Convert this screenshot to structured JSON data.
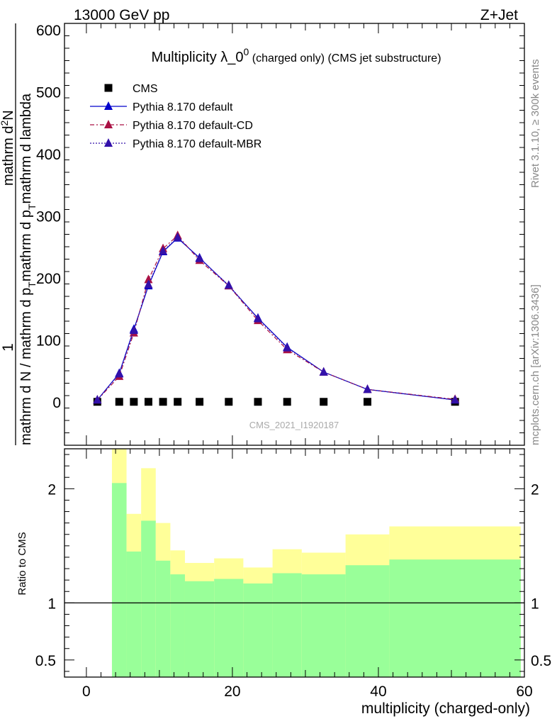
{
  "header": {
    "left": "13000 GeV pp",
    "right": "Z+Jet"
  },
  "side_labels": {
    "rivet": "Rivet 3.1.10, ≥ 300k events",
    "mcplots": "mcplots.cern.ch [arXiv:1306.3436]"
  },
  "watermark": "CMS_2021_I1920187",
  "colors": {
    "band_inner": "#99ff99",
    "band_outer": "#ffff99",
    "cms": "#000000",
    "default": "#0000cc",
    "cd": "#aa1144",
    "mbr": "#3311aa"
  },
  "chart_data": [
    {
      "type": "line",
      "title": "Multiplicity λ_0",
      "title_sup": "0",
      "title_suffix": " (charged only) (CMS jet substructure)",
      "ylabel_parts": [
        "1",
        "mathrm d N / mathrm d p",
        "T",
        "mathrm d p",
        "T",
        "mathrm d lambda",
        "mathrm d",
        "2",
        "N"
      ],
      "xlim": [
        -3,
        60
      ],
      "ylim": [
        -70,
        610
      ],
      "yticks": [
        0,
        100,
        200,
        300,
        400,
        500,
        600
      ],
      "legend_position": "top-left",
      "legend": [
        "CMS",
        "Pythia 8.170 default",
        "Pythia 8.170 default-CD",
        "Pythia 8.170 default-MBR"
      ],
      "x": [
        1.5,
        4.5,
        6.5,
        8.5,
        10.5,
        12.5,
        15.5,
        19.5,
        23.5,
        27.5,
        32.5,
        38.5,
        50.5
      ],
      "series": [
        {
          "name": "CMS",
          "values": [
            0,
            0,
            0,
            0,
            0,
            0,
            0,
            0,
            0,
            0,
            0,
            0,
            0
          ]
        },
        {
          "name": "Pythia 8.170 default",
          "values": [
            3,
            46,
            117,
            187,
            242,
            264,
            232,
            187,
            135,
            88,
            48,
            20,
            3
          ]
        },
        {
          "name": "Pythia 8.170 default-CD",
          "values": [
            3,
            41,
            111,
            197,
            247,
            268,
            228,
            187,
            131,
            84,
            48,
            20,
            4
          ]
        },
        {
          "name": "Pythia 8.170 default-MBR",
          "values": [
            3,
            45,
            115,
            189,
            243,
            265,
            231,
            188,
            134,
            87,
            48,
            20,
            3
          ]
        }
      ]
    },
    {
      "type": "area",
      "ylabel": "Ratio to CMS",
      "xlabel": "multiplicity (charged-only)",
      "xlim": [
        -3,
        60
      ],
      "ylim": [
        0.35,
        2.35
      ],
      "yticks": [
        0.5,
        1,
        2
      ],
      "ytick_labels": [
        "0.5",
        "1",
        "2"
      ],
      "xticks": [
        0,
        20,
        40,
        60
      ],
      "reference_line": 1,
      "bins": [
        {
          "x": [
            3.5,
            5.5
          ],
          "inner": [
            0.35,
            2.05
          ],
          "outer": [
            0.35,
            2.35
          ]
        },
        {
          "x": [
            5.5,
            7.5
          ],
          "inner": [
            0.35,
            1.45
          ],
          "outer": [
            0.35,
            1.78
          ]
        },
        {
          "x": [
            7.5,
            9.5
          ],
          "inner": [
            0.35,
            1.72
          ],
          "outer": [
            0.35,
            2.18
          ]
        },
        {
          "x": [
            9.5,
            11.5
          ],
          "inner": [
            0.35,
            1.37
          ],
          "outer": [
            0.35,
            1.7
          ]
        },
        {
          "x": [
            11.5,
            13.5
          ],
          "inner": [
            0.35,
            1.25
          ],
          "outer": [
            0.35,
            1.46
          ]
        },
        {
          "x": [
            13.5,
            17.5
          ],
          "inner": [
            0.35,
            1.19
          ],
          "outer": [
            0.35,
            1.35
          ]
        },
        {
          "x": [
            17.5,
            21.5
          ],
          "inner": [
            0.35,
            1.21
          ],
          "outer": [
            0.35,
            1.39
          ]
        },
        {
          "x": [
            21.5,
            25.5
          ],
          "inner": [
            0.35,
            1.17
          ],
          "outer": [
            0.35,
            1.31
          ]
        },
        {
          "x": [
            25.5,
            29.5
          ],
          "inner": [
            0.35,
            1.26
          ],
          "outer": [
            0.35,
            1.47
          ]
        },
        {
          "x": [
            29.5,
            35.5
          ],
          "inner": [
            0.35,
            1.25
          ],
          "outer": [
            0.35,
            1.44
          ]
        },
        {
          "x": [
            35.5,
            41.5
          ],
          "inner": [
            0.35,
            1.33
          ],
          "outer": [
            0.35,
            1.6
          ]
        },
        {
          "x": [
            41.5,
            59.5
          ],
          "inner": [
            0.35,
            1.38
          ],
          "outer": [
            0.35,
            1.67
          ]
        }
      ],
      "ratio_series": [
        {
          "name": "Pythia 8.170 default",
          "values": []
        },
        {
          "name": "Pythia 8.170 default-CD",
          "values": []
        },
        {
          "name": "Pythia 8.170 default-MBR",
          "values": []
        }
      ]
    }
  ]
}
